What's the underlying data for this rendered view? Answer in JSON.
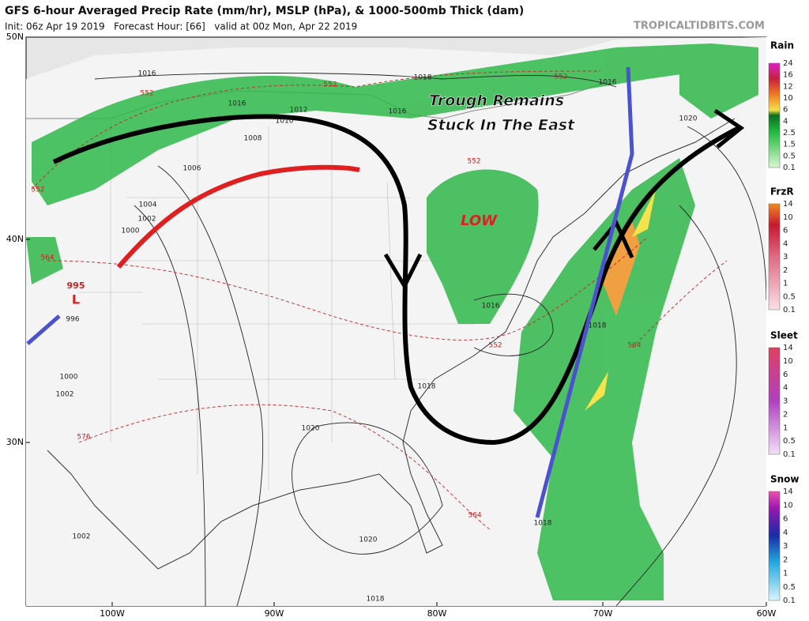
{
  "header": {
    "title": "GFS 6-hour Averaged Precip Rate (mm/hr), MSLP (hPa), & 1000-500mb Thick (dam)",
    "subtitle": "Init: 06z Apr 19 2019   Forecast Hour: [66]   valid at 00z Mon, Apr 22 2019",
    "credit": "TROPICALTIDBITS.COM"
  },
  "axes": {
    "lat_labels": [
      "50N",
      "40N",
      "30N"
    ],
    "lon_labels": [
      "100W",
      "90W",
      "80W",
      "70W",
      "60W"
    ]
  },
  "annotations": {
    "trough_line1": "Trough Remains",
    "trough_line2": "Stuck In The East",
    "low": "LOW",
    "low_symbol": "L",
    "low_pressure": "995"
  },
  "isobar_labels": [
    "1016",
    "1018",
    "1016",
    "1016",
    "1012",
    "1010",
    "1016",
    "1008",
    "1006",
    "1004",
    "1002",
    "1000",
    "996",
    "1000",
    "1002",
    "1020",
    "1016",
    "1018",
    "1018",
    "1020",
    "1020",
    "1018",
    "1018",
    "1002"
  ],
  "thickness_labels": [
    "552",
    "552",
    "552",
    "552",
    "564",
    "552",
    "564",
    "576",
    "564",
    "552"
  ],
  "legend": [
    {
      "title": "Rain",
      "labels": [
        "24",
        "16",
        "12",
        "10",
        "6",
        "4",
        "2.5",
        "1.5",
        "0.5",
        "0.1"
      ]
    },
    {
      "title": "FrzR",
      "labels": [
        "14",
        "10",
        "6",
        "4",
        "3",
        "2",
        "1",
        "0.5",
        "0.1"
      ]
    },
    {
      "title": "Sleet",
      "labels": [
        "14",
        "10",
        "6",
        "4",
        "3",
        "2",
        "1",
        "0.5",
        "0.1"
      ]
    },
    {
      "title": "Snow",
      "labels": [
        "14",
        "10",
        "6",
        "4",
        "3",
        "2",
        "1",
        "0.5",
        "0.1"
      ]
    }
  ]
}
